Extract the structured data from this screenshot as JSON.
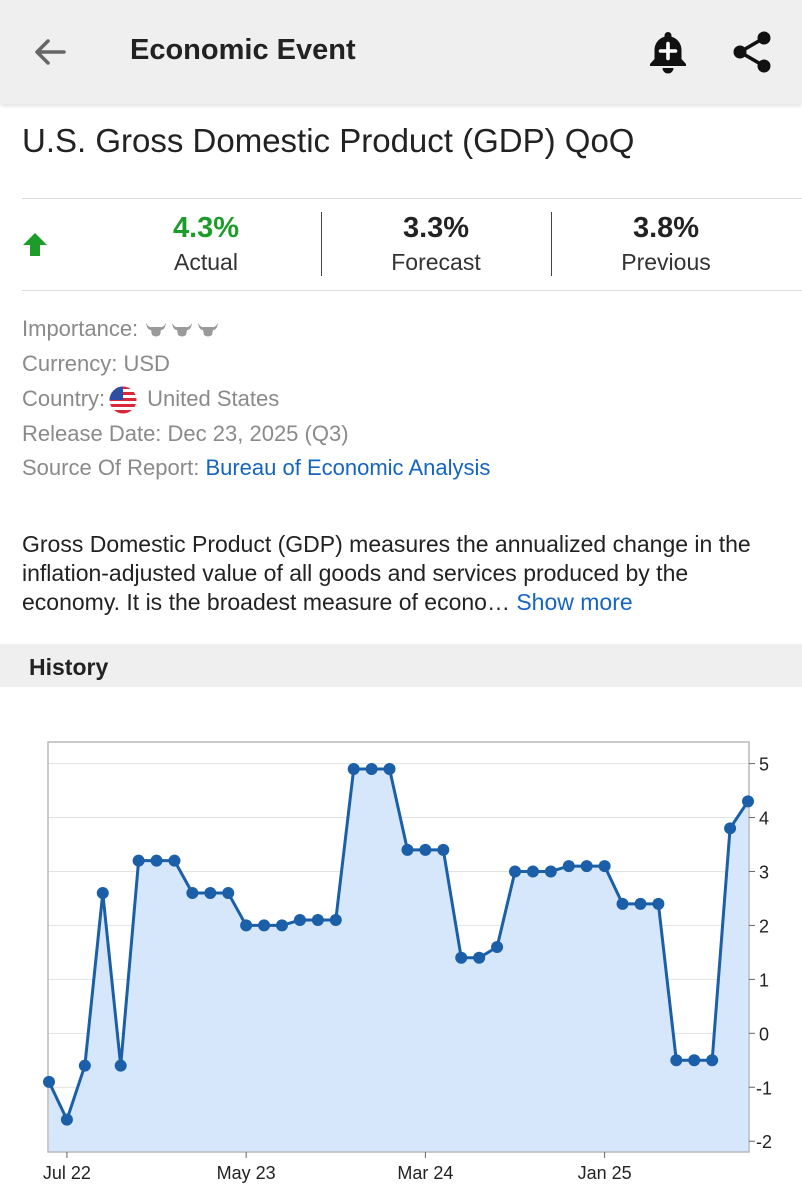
{
  "header": {
    "title": "Economic Event",
    "back_icon": "arrow-left-icon",
    "alert_icon": "bell-plus-icon",
    "share_icon": "share-icon"
  },
  "event": {
    "title": "U.S. Gross Domestic Product (GDP) QoQ",
    "trend_icon": "arrow-up-icon",
    "actual": {
      "value": "4.3%",
      "label": "Actual"
    },
    "forecast": {
      "value": "3.3%",
      "label": "Forecast"
    },
    "previous": {
      "value": "3.8%",
      "label": "Previous"
    }
  },
  "details": {
    "importance_label": "Importance:",
    "importance_level": 3,
    "currency_label": "Currency:",
    "currency": "USD",
    "country_label": "Country:",
    "country": "United States",
    "release_label": "Release Date:",
    "release_date": "Dec 23, 2025 (Q3)",
    "source_label": "Source Of Report:",
    "source": "Bureau of Economic Analysis"
  },
  "description": {
    "text": "Gross Domestic Product (GDP) measures the annualized change in the inflation-adjusted value of all goods and services produced by the economy. It is the broadest measure of econo…",
    "show_more": "Show more"
  },
  "history": {
    "label": "History"
  },
  "colors": {
    "accent": "#1565c0",
    "positive": "#1e9c2a",
    "line": "#1a5fa8",
    "fill": "#d6e6fb"
  },
  "chart_data": {
    "type": "area",
    "x_tick_labels": [
      "Jul 22",
      "May 23",
      "Mar 24",
      "Jan 25"
    ],
    "x_tick_indices": [
      1,
      11,
      21,
      31
    ],
    "y_ticks": [
      5,
      4,
      3,
      2,
      1,
      0,
      -1,
      -2
    ],
    "ylim": [
      -2.2,
      5.4
    ],
    "y_axis_side": "right",
    "grid": true,
    "values": [
      -0.9,
      -1.6,
      -0.6,
      2.6,
      -0.6,
      3.2,
      3.2,
      3.2,
      2.6,
      2.6,
      2.6,
      2.0,
      2.0,
      2.0,
      2.1,
      2.1,
      2.1,
      4.9,
      4.9,
      4.9,
      3.4,
      3.4,
      3.4,
      1.4,
      1.4,
      1.6,
      3.0,
      3.0,
      3.0,
      3.1,
      3.1,
      3.1,
      2.4,
      2.4,
      2.4,
      -0.5,
      -0.5,
      -0.5,
      3.8,
      4.3
    ]
  }
}
